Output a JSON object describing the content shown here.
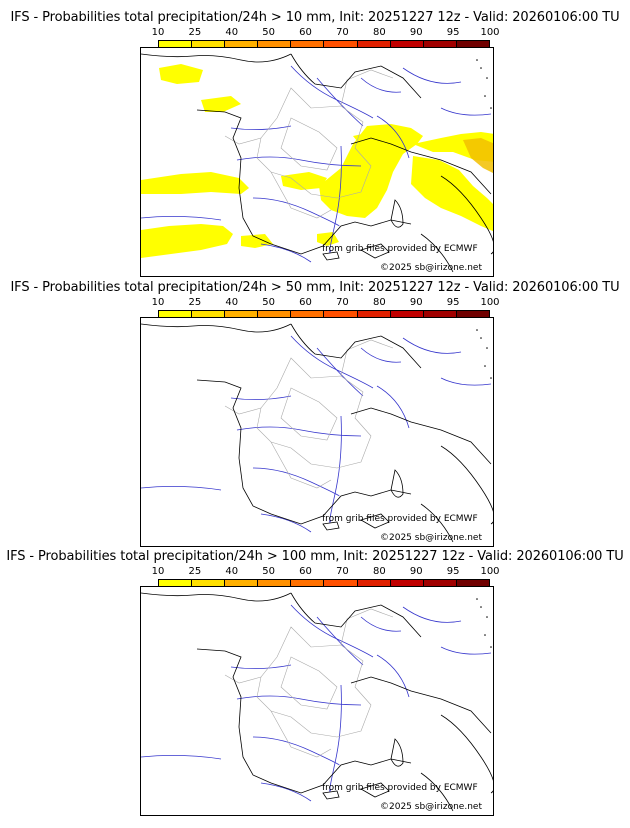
{
  "colorbar": {
    "labels": [
      "10",
      "25",
      "40",
      "50",
      "60",
      "70",
      "80",
      "90",
      "95",
      "100"
    ],
    "colors": [
      "#ffff00",
      "#ffe000",
      "#ffb000",
      "#ff9000",
      "#ff7000",
      "#ff5000",
      "#e02000",
      "#c00000",
      "#a00000",
      "#700000"
    ]
  },
  "panels": [
    {
      "title": "IFS - Probabilities total precipitation/24h > 10 mm, Init: 20251227 12z - Valid: 20260106:00 TU"
    },
    {
      "title": "IFS - Probabilities total precipitation/24h > 50 mm, Init: 20251227 12z - Valid: 20260106:00 TU"
    },
    {
      "title": "IFS - Probabilities total precipitation/24h > 100 mm, Init: 20251227 12z - Valid: 20260106:00 TU"
    }
  ],
  "credits": {
    "source": "from grib files provided by ECMWF",
    "copyright": "©2025 sb@irizone.net"
  },
  "map": {
    "region": "France and surroundings",
    "legend_colors": {
      "coast_border": "#000000",
      "rivers": "#3333cc",
      "admin": "#aaaaaa",
      "prob_low": "#ffff00",
      "prob_mid": "#f2c000"
    }
  }
}
